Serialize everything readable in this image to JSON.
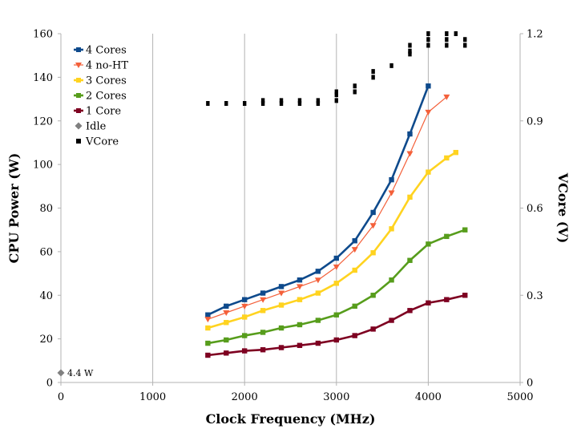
{
  "chart_data": {
    "type": "line",
    "xlabel": "Clock Frequency (MHz)",
    "ylabel": "CPU Power (W)",
    "y2label": "VCore (V)",
    "xlim": [
      0,
      5000
    ],
    "ylim": [
      0,
      160
    ],
    "y2lim": [
      0,
      1.2
    ],
    "xticks": [
      "0",
      "1000",
      "2000",
      "3000",
      "4000",
      "5000"
    ],
    "yticks": [
      "0",
      "20",
      "40",
      "60",
      "80",
      "100",
      "120",
      "140",
      "160"
    ],
    "y2ticks": [
      "0",
      "0.3",
      "0.6",
      "0.9",
      "1.2"
    ],
    "grid": "vertical",
    "legend_position": "top-left",
    "series": [
      {
        "name": "4 Cores",
        "color": "#0e4a8c",
        "marker": "square",
        "line": "thick",
        "x": [
          1600,
          1800,
          2000,
          2200,
          2400,
          2600,
          2800,
          3000,
          3200,
          3400,
          3600,
          3800,
          4000
        ],
        "y": [
          31,
          35,
          38,
          41,
          44,
          47,
          51,
          57,
          65,
          78,
          93,
          114,
          136
        ]
      },
      {
        "name": "4 no-HT",
        "color": "#f4603a",
        "marker": "triangle-down",
        "line": "thin",
        "x": [
          1600,
          1800,
          2000,
          2200,
          2400,
          2600,
          2800,
          3000,
          3200,
          3400,
          3600,
          3800,
          4000,
          4200
        ],
        "y": [
          29,
          32,
          35,
          38,
          41,
          44,
          47,
          53,
          61,
          72,
          87,
          105,
          124,
          131
        ]
      },
      {
        "name": "3 Cores",
        "color": "#ffd320",
        "marker": "square",
        "line": "thick",
        "x": [
          1600,
          1800,
          2000,
          2200,
          2400,
          2600,
          2800,
          3000,
          3200,
          3400,
          3600,
          3800,
          4000,
          4200,
          4300
        ],
        "y": [
          25,
          27.5,
          30,
          33,
          35.5,
          38,
          41,
          45.5,
          51.5,
          59.5,
          70.5,
          85,
          96.5,
          103,
          105.5
        ]
      },
      {
        "name": "2 Cores",
        "color": "#579d1c",
        "marker": "square",
        "line": "thick",
        "x": [
          1600,
          1800,
          2000,
          2200,
          2400,
          2600,
          2800,
          3000,
          3200,
          3400,
          3600,
          3800,
          4000,
          4200,
          4400
        ],
        "y": [
          18,
          19.5,
          21.5,
          23,
          25,
          26.5,
          28.5,
          31,
          35,
          40,
          47,
          56,
          63.5,
          67,
          70
        ]
      },
      {
        "name": "1 Core",
        "color": "#7e0021",
        "marker": "square",
        "line": "thick",
        "x": [
          1600,
          1800,
          2000,
          2200,
          2400,
          2600,
          2800,
          3000,
          3200,
          3400,
          3600,
          3800,
          4000,
          4200,
          4400
        ],
        "y": [
          12.5,
          13.5,
          14.5,
          15,
          16,
          17,
          18,
          19.5,
          21.5,
          24.5,
          28.5,
          33,
          36.5,
          38,
          40
        ]
      },
      {
        "name": "Idle",
        "color": "#808080",
        "marker": "diamond",
        "line": "none",
        "x": [
          0
        ],
        "y": [
          4.4
        ]
      },
      {
        "name": "VCore",
        "color": "#000000",
        "marker": "square",
        "line": "none",
        "axis": "right",
        "x": [
          1600,
          1800,
          2000,
          2200,
          2200,
          2400,
          2400,
          2600,
          2600,
          2800,
          2800,
          3000,
          3000,
          3000,
          3200,
          3200,
          3400,
          3400,
          3600,
          3800,
          3800,
          3800,
          4000,
          4000,
          4000,
          4200,
          4200,
          4200,
          4300,
          4400,
          4400
        ],
        "y": [
          0.96,
          0.96,
          0.96,
          0.96,
          0.97,
          0.96,
          0.97,
          0.96,
          0.97,
          0.96,
          0.97,
          0.97,
          0.99,
          1.0,
          1.0,
          1.02,
          1.05,
          1.07,
          1.09,
          1.13,
          1.14,
          1.16,
          1.16,
          1.18,
          1.2,
          1.16,
          1.18,
          1.2,
          1.2,
          1.16,
          1.18
        ]
      }
    ],
    "annotations": [
      {
        "text": "4.4 W"
      }
    ]
  }
}
